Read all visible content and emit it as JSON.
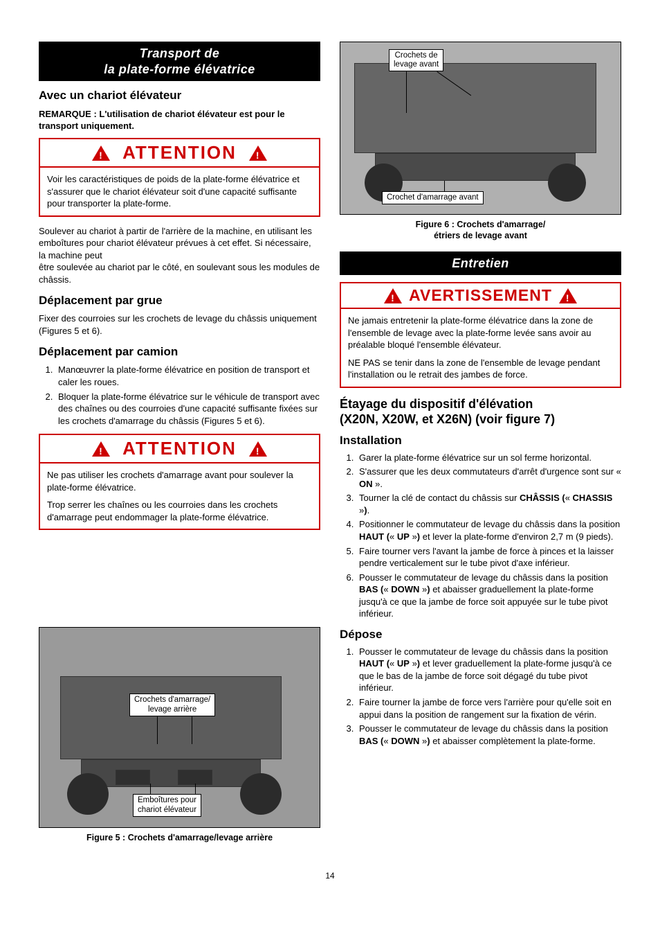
{
  "page_number": "14",
  "left": {
    "title_l1": "Transport de",
    "title_l2": "la plate-forme élévatrice",
    "h_chariot": "Avec un chariot élévateur",
    "remarque": "REMARQUE : L'utilisation de chariot élévateur est pour le transport uniquement.",
    "attention_word": "ATTENTION",
    "att1_body": "Voir les caractéristiques de poids de la plate-forme élévatrice et s'assurer que le chariot élévateur soit d'une capacité suffisante pour transporter la plate-forme.",
    "p_soulever": "Soulever au chariot à partir de l'arrière de la machine, en utilisant les emboîtures pour chariot élévateur prévues à cet effet. Si nécessaire, la machine peut\nêtre soulevée au chariot par le côté, en soulevant sous les modules de châssis.",
    "h_grue": "Déplacement par grue",
    "p_grue": "Fixer des courroies sur les crochets de levage du châssis uniquement (Figures 5 et 6).",
    "h_camion": "Déplacement par camion",
    "camion_steps": [
      "Manœuvrer la plate-forme élévatrice en position de transport et caler les roues.",
      "Bloquer la plate-forme élévatrice sur le véhicule de transport avec des chaînes ou des courroies d'une capacité suffisante fixées sur les crochets d'amarrage du châssis (Figures 5 et 6)."
    ],
    "att2_p1": "Ne pas utiliser les crochets d'amarrage avant pour soulever la plate-forme élévatrice.",
    "att2_p2": "Trop serrer les chaînes ou les courroies dans les crochets d'amarrage peut endommager la plate-forme élévatrice.",
    "fig5": {
      "callout_top": "Crochets d'amarrage/\nlevage arrière",
      "callout_bot": "Emboîtures pour\nchariot élévateur",
      "caption": "Figure 5 : Crochets d'amarrage/levage arrière"
    }
  },
  "right": {
    "fig6": {
      "callout_top": "Crochets de\nlevage avant",
      "callout_bot": "Crochet d'amarrage avant",
      "caption_l1": "Figure 6 : Crochets d'amarrage/",
      "caption_l2": "étriers de levage avant"
    },
    "title_entretien": "Entretien",
    "avert_word": "AVERTISSEMENT",
    "avert_p1": "Ne jamais entretenir la plate-forme élévatrice dans la zone de l'ensemble de levage avec la plate-forme levée sans avoir au préalable bloqué l'ensemble élévateur.",
    "avert_p2": "NE PAS se tenir dans la zone de l'ensemble de levage pendant l'installation ou le retrait des jambes de force.",
    "h_etayage_l1": "Étayage du dispositif d'élévation",
    "h_etayage_l2": "(X20N, X20W, et X26N) (voir figure 7)",
    "h_install": "Installation",
    "install_steps": [
      "Garer la plate-forme élévatrice sur un sol ferme horizontal.",
      "S'assurer que les deux commutateurs d'arrêt d'urgence sont sur « <b>ON</b> ».",
      "Tourner la clé de contact du châssis sur <b>CHÂSSIS (</b>« <b>CHASSIS</b> »<b>)</b>.",
      "Positionner le commutateur de levage du châssis dans la position <b>HAUT (</b>« <b>UP</b> »<b>)</b> et lever la plate-forme d'environ 2,7 m (9 pieds).",
      "Faire tourner vers l'avant la jambe de force à pinces et la laisser pendre verticalement sur le tube pivot d'axe inférieur.",
      "Pousser le commutateur de levage du châssis dans la position <b>BAS (</b>« <b>DOWN</b> »<b>)</b> et abaisser graduellement la plate-forme jusqu'à ce que la jambe de force soit appuyée sur le tube pivot inférieur."
    ],
    "h_depose": "Dépose",
    "depose_steps": [
      "Pousser le commutateur de levage du châssis dans la position <b>HAUT (</b>« <b>UP</b> »<b>)</b> et lever graduellement la plate-forme jusqu'à ce que le bas de la jambe de force soit dégagé du tube pivot inférieur.",
      "Faire tourner la jambe de force vers l'arrière pour qu'elle soit en appui dans la position de rangement sur la fixation de vérin.",
      "Pousser le commutateur de levage du châssis dans la position <b>BAS (</b>« <b>DOWN</b> »<b>)</b> et abaisser complètement la plate-forme."
    ]
  },
  "style": {
    "alert_border": "#cc0000",
    "alert_text": "#cc0000",
    "title_bg": "#000000",
    "title_fg": "#ffffff",
    "page_bg": "#ffffff",
    "body_color": "#000000"
  }
}
